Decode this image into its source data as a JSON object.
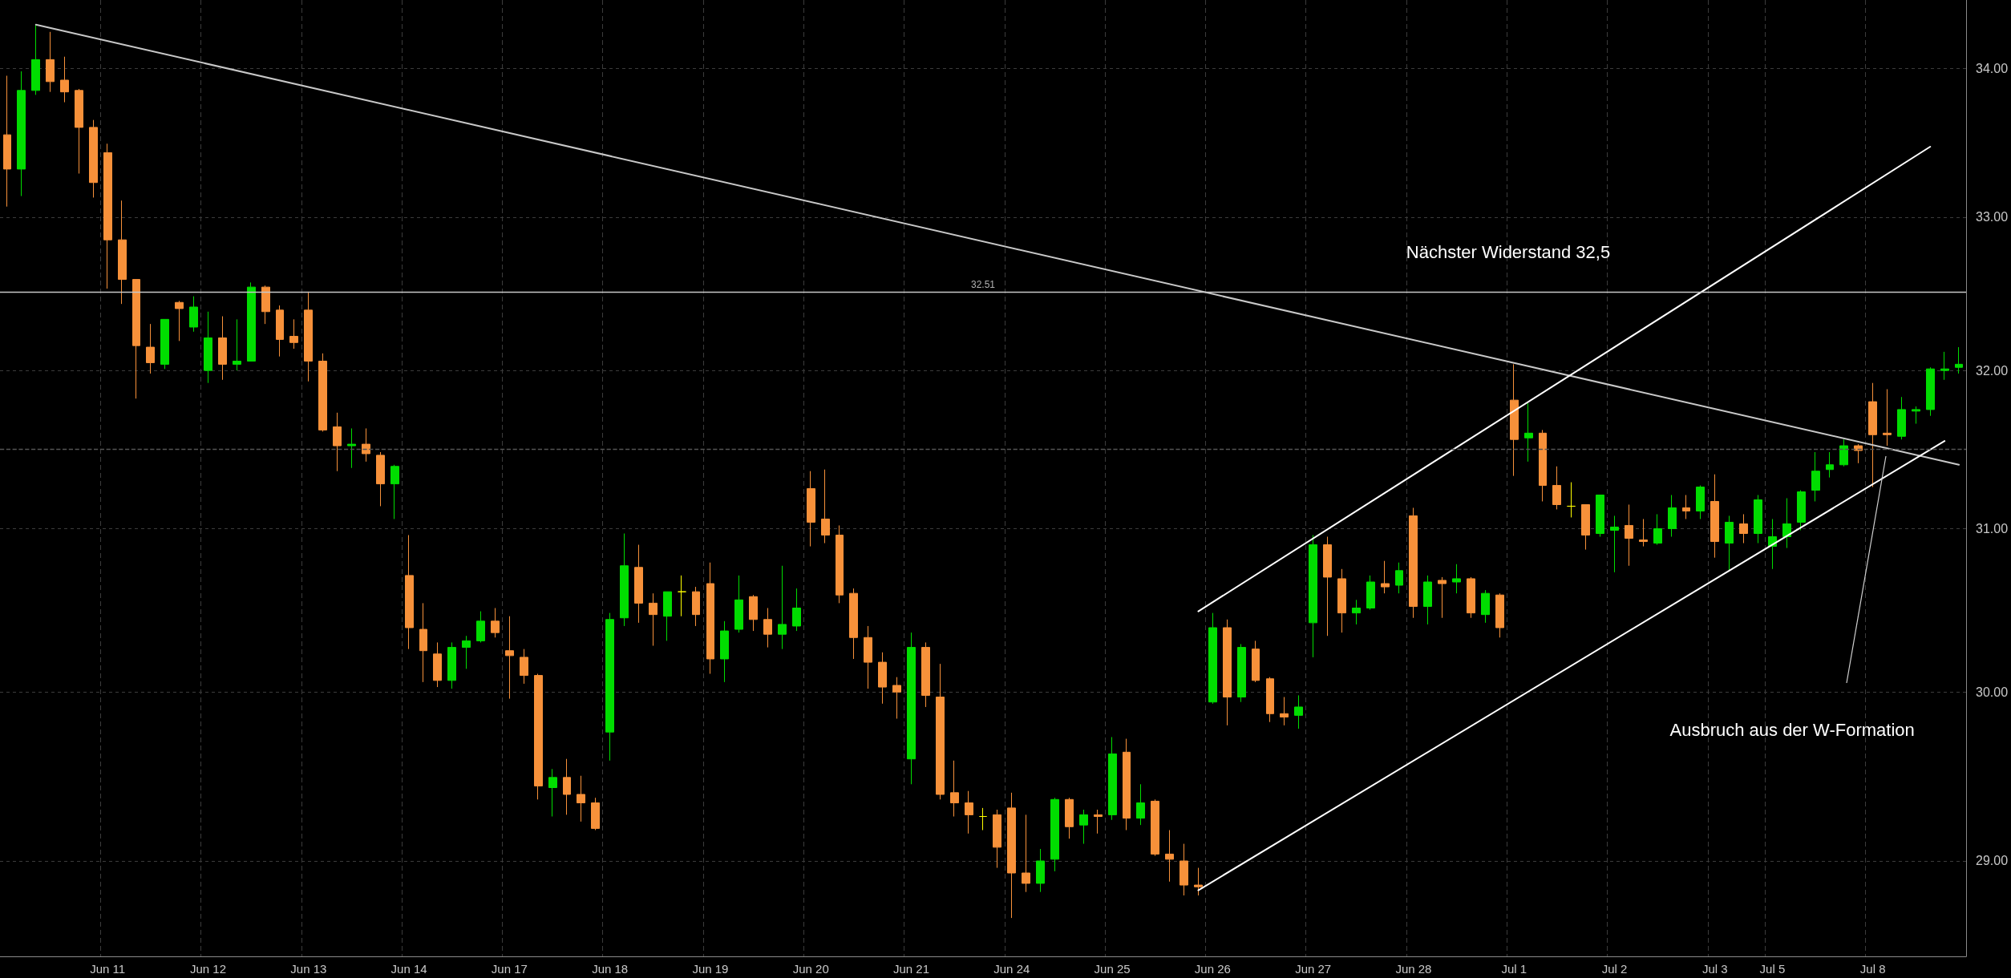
{
  "chart_data": {
    "type": "candlestick",
    "categories": [
      null,
      null,
      null,
      null,
      null,
      null,
      null,
      "Jun 11",
      null,
      null,
      null,
      null,
      null,
      null,
      "Jun 12",
      null,
      null,
      null,
      null,
      null,
      null,
      "Jun 13",
      null,
      null,
      null,
      null,
      null,
      null,
      "Jun 14",
      null,
      null,
      null,
      null,
      null,
      null,
      "Jun 17",
      null,
      null,
      null,
      null,
      null,
      null,
      "Jun 18",
      null,
      null,
      null,
      null,
      null,
      null,
      "Jun 19",
      null,
      null,
      null,
      null,
      null,
      null,
      "Jun 20",
      null,
      null,
      null,
      null,
      null,
      null,
      "Jun 21",
      null,
      null,
      null,
      null,
      null,
      null,
      "Jun 24",
      null,
      null,
      null,
      null,
      null,
      null,
      "Jun 25",
      null,
      null,
      null,
      null,
      null,
      null,
      "Jun 26",
      null,
      null,
      null,
      null,
      null,
      null,
      "Jun 27",
      null,
      null,
      null,
      null,
      null,
      null,
      "Jun 28",
      null,
      null,
      null,
      null,
      null,
      null,
      "Jul 1",
      null,
      null,
      null,
      null,
      null,
      null,
      "Jul 2",
      null,
      null,
      null,
      null,
      null,
      null,
      "Jul 3",
      null,
      null,
      null,
      "Jul 5",
      null,
      null,
      null,
      null,
      null,
      null,
      "Jul 8",
      null,
      null,
      null,
      null,
      null,
      null
    ],
    "series": [
      {
        "ohlc": [
          [
            33.55,
            33.95,
            33.07,
            33.32
          ],
          [
            33.32,
            33.98,
            33.14,
            33.85
          ],
          [
            33.85,
            34.3,
            33.82,
            34.06
          ],
          [
            34.06,
            34.25,
            33.84,
            33.91
          ],
          [
            33.92,
            34.08,
            33.77,
            33.84
          ],
          [
            33.85,
            33.86,
            33.29,
            33.6
          ],
          [
            33.6,
            33.65,
            33.13,
            33.23
          ],
          [
            33.43,
            33.49,
            32.53,
            32.85
          ],
          [
            32.85,
            33.11,
            32.43,
            32.59
          ],
          [
            32.59,
            32.59,
            31.82,
            32.16
          ],
          [
            32.15,
            32.3,
            31.98,
            32.05
          ],
          [
            32.04,
            32.33,
            32.01,
            32.33
          ],
          [
            32.44,
            32.45,
            32.19,
            32.4
          ],
          [
            32.28,
            32.48,
            32.25,
            32.41
          ],
          [
            32.0,
            32.38,
            31.92,
            32.21
          ],
          [
            32.21,
            32.35,
            31.94,
            32.04
          ],
          [
            32.04,
            32.33,
            32.0,
            32.06
          ],
          [
            32.06,
            32.57,
            32.06,
            32.54
          ],
          [
            32.54,
            32.55,
            32.3,
            32.38
          ],
          [
            32.39,
            32.42,
            32.09,
            32.2
          ],
          [
            32.22,
            32.33,
            32.14,
            32.18
          ],
          [
            32.39,
            32.51,
            31.93,
            32.06
          ],
          [
            32.06,
            32.11,
            31.61,
            31.62
          ],
          [
            31.64,
            31.73,
            31.36,
            31.52
          ],
          [
            31.52,
            31.63,
            31.38,
            31.53
          ],
          [
            31.53,
            31.63,
            31.42,
            31.47
          ],
          [
            31.46,
            31.48,
            31.14,
            31.28
          ],
          [
            31.28,
            31.4,
            31.06,
            31.39
          ],
          [
            30.71,
            30.96,
            30.26,
            30.39
          ],
          [
            30.38,
            30.54,
            30.06,
            30.25
          ],
          [
            30.23,
            30.3,
            30.03,
            30.07
          ],
          [
            30.07,
            30.3,
            30.02,
            30.27
          ],
          [
            30.27,
            30.34,
            30.14,
            30.31
          ],
          [
            30.31,
            30.49,
            30.3,
            30.43
          ],
          [
            30.43,
            30.51,
            30.33,
            30.36
          ],
          [
            30.25,
            30.46,
            29.96,
            30.22
          ],
          [
            30.21,
            30.26,
            30.05,
            30.1
          ],
          [
            30.1,
            30.11,
            29.36,
            29.44
          ],
          [
            29.43,
            29.54,
            29.26,
            29.49
          ],
          [
            29.49,
            29.6,
            29.27,
            29.39
          ],
          [
            29.39,
            29.5,
            29.23,
            29.34
          ],
          [
            29.34,
            29.37,
            29.18,
            29.19
          ],
          [
            29.76,
            30.48,
            29.59,
            30.44
          ],
          [
            30.45,
            30.97,
            30.4,
            30.77
          ],
          [
            30.76,
            30.9,
            30.42,
            30.54
          ],
          [
            30.54,
            30.6,
            30.28,
            30.47
          ],
          [
            30.46,
            30.61,
            30.31,
            30.61
          ],
          [
            30.61,
            30.71,
            30.46,
            30.61
          ],
          [
            30.61,
            30.64,
            30.4,
            30.47
          ],
          [
            30.66,
            30.79,
            30.11,
            30.2
          ],
          [
            30.2,
            30.43,
            30.06,
            30.37
          ],
          [
            30.38,
            30.71,
            30.36,
            30.56
          ],
          [
            30.58,
            30.59,
            30.37,
            30.44
          ],
          [
            30.44,
            30.51,
            30.27,
            30.35
          ],
          [
            30.35,
            30.77,
            30.26,
            30.41
          ],
          [
            30.4,
            30.63,
            30.37,
            30.51
          ],
          [
            31.25,
            31.36,
            30.89,
            31.04
          ],
          [
            31.06,
            31.37,
            30.91,
            30.96
          ],
          [
            30.96,
            31.02,
            30.54,
            30.59
          ],
          [
            30.6,
            30.63,
            30.2,
            30.33
          ],
          [
            30.33,
            30.4,
            30.02,
            30.18
          ],
          [
            30.18,
            30.24,
            29.93,
            30.03
          ],
          [
            30.04,
            30.09,
            29.84,
            30.0
          ],
          [
            29.6,
            30.36,
            29.45,
            30.27
          ],
          [
            30.27,
            30.3,
            29.91,
            29.98
          ],
          [
            29.97,
            30.17,
            29.36,
            29.39
          ],
          [
            29.4,
            29.59,
            29.26,
            29.34
          ],
          [
            29.34,
            29.41,
            29.16,
            29.27
          ],
          [
            29.26,
            29.31,
            29.18,
            29.26
          ],
          [
            29.27,
            29.3,
            28.96,
            29.08
          ],
          [
            29.31,
            29.4,
            28.67,
            28.93
          ],
          [
            28.93,
            29.27,
            28.82,
            28.87
          ],
          [
            28.87,
            29.07,
            28.82,
            29.0
          ],
          [
            29.01,
            29.37,
            28.94,
            29.36
          ],
          [
            29.36,
            29.37,
            29.13,
            29.2
          ],
          [
            29.21,
            29.3,
            29.1,
            29.27
          ],
          [
            29.27,
            29.3,
            29.16,
            29.26
          ],
          [
            29.27,
            29.73,
            29.24,
            29.63
          ],
          [
            29.64,
            29.72,
            29.18,
            29.25
          ],
          [
            29.25,
            29.45,
            29.21,
            29.34
          ],
          [
            29.35,
            29.36,
            29.03,
            29.04
          ],
          [
            29.04,
            29.18,
            28.88,
            29.01
          ],
          [
            29.0,
            29.1,
            28.8,
            28.86
          ],
          [
            28.86,
            28.96,
            28.8,
            28.85
          ],
          [
            29.94,
            30.48,
            29.93,
            30.39
          ],
          [
            30.39,
            30.44,
            29.8,
            29.97
          ],
          [
            29.97,
            30.29,
            29.94,
            30.27
          ],
          [
            30.26,
            30.31,
            30.06,
            30.07
          ],
          [
            30.08,
            30.09,
            29.82,
            29.87
          ],
          [
            29.87,
            29.97,
            29.8,
            29.85
          ],
          [
            29.86,
            29.98,
            29.78,
            29.91
          ],
          [
            30.42,
            30.96,
            30.21,
            30.9
          ],
          [
            30.9,
            30.95,
            30.34,
            30.7
          ],
          [
            30.69,
            30.75,
            30.36,
            30.48
          ],
          [
            30.48,
            30.56,
            30.41,
            30.51
          ],
          [
            30.51,
            30.71,
            30.5,
            30.67
          ],
          [
            30.66,
            30.8,
            30.6,
            30.64
          ],
          [
            30.65,
            30.79,
            30.6,
            30.74
          ],
          [
            31.08,
            31.13,
            30.45,
            30.52
          ],
          [
            30.52,
            30.71,
            30.41,
            30.67
          ],
          [
            30.68,
            30.7,
            30.45,
            30.66
          ],
          [
            30.67,
            30.78,
            30.6,
            30.69
          ],
          [
            30.69,
            30.7,
            30.45,
            30.48
          ],
          [
            30.47,
            30.62,
            30.42,
            30.6
          ],
          [
            30.59,
            30.6,
            30.33,
            30.39
          ],
          [
            31.81,
            32.04,
            31.33,
            31.56
          ],
          [
            31.57,
            31.79,
            31.42,
            31.6
          ],
          [
            31.6,
            31.62,
            31.17,
            31.27
          ],
          [
            31.27,
            31.39,
            31.12,
            31.15
          ],
          [
            31.14,
            31.29,
            31.07,
            31.14
          ],
          [
            31.15,
            31.15,
            30.87,
            30.96
          ],
          [
            30.97,
            31.21,
            30.95,
            31.21
          ],
          [
            30.99,
            31.08,
            30.73,
            31.01
          ],
          [
            31.02,
            31.15,
            30.77,
            30.94
          ],
          [
            30.93,
            31.06,
            30.89,
            30.92
          ],
          [
            30.91,
            31.09,
            30.9,
            31.0
          ],
          [
            31.0,
            31.21,
            30.95,
            31.13
          ],
          [
            31.13,
            31.21,
            31.06,
            31.11
          ],
          [
            31.11,
            31.27,
            31.06,
            31.26
          ],
          [
            31.17,
            31.34,
            30.82,
            30.92
          ],
          [
            30.91,
            31.08,
            30.74,
            31.04
          ],
          [
            31.03,
            31.09,
            30.91,
            30.97
          ],
          [
            30.97,
            31.21,
            30.91,
            31.18
          ],
          [
            30.89,
            31.06,
            30.75,
            30.95
          ],
          [
            30.95,
            31.19,
            30.88,
            31.03
          ],
          [
            31.04,
            31.24,
            30.99,
            31.23
          ],
          [
            31.24,
            31.48,
            31.17,
            31.36
          ],
          [
            31.37,
            31.48,
            31.32,
            31.4
          ],
          [
            31.4,
            31.56,
            31.39,
            31.52
          ],
          [
            31.52,
            31.53,
            31.41,
            31.49
          ],
          [
            31.8,
            31.92,
            31.26,
            31.59
          ],
          [
            31.6,
            31.88,
            31.52,
            31.59
          ],
          [
            31.58,
            31.83,
            31.56,
            31.75
          ],
          [
            31.74,
            31.77,
            31.66,
            31.75
          ],
          [
            31.75,
            32.02,
            31.71,
            32.01
          ],
          [
            32.0,
            32.12,
            31.94,
            32.01
          ],
          [
            32.02,
            32.15,
            31.98,
            32.04
          ]
        ],
        "colors": [
          "#f7913a",
          "#00dd00",
          "#00dd00",
          "#f7913a",
          "#f7913a",
          "#f7913a",
          "#f7913a",
          "#f7913a",
          "#f7913a",
          "#f7913a",
          "#f7913a",
          "#00dd00",
          "#f7913a",
          "#00dd00",
          "#00dd00",
          "#f7913a",
          "#00dd00",
          "#00dd00",
          "#f7913a",
          "#f7913a",
          "#f7913a",
          "#f7913a",
          "#f7913a",
          "#f7913a",
          "#00dd00",
          "#f7913a",
          "#f7913a",
          "#00dd00",
          "#f7913a",
          "#f7913a",
          "#f7913a",
          "#00dd00",
          "#00dd00",
          "#00dd00",
          "#f7913a",
          "#f7913a",
          "#f7913a",
          "#f7913a",
          "#00dd00",
          "#f7913a",
          "#f7913a",
          "#f7913a",
          "#00dd00",
          "#00dd00",
          "#f7913a",
          "#f7913a",
          "#00dd00",
          "#ffff00",
          "#f7913a",
          "#f7913a",
          "#00dd00",
          "#00dd00",
          "#f7913a",
          "#f7913a",
          "#00dd00",
          "#00dd00",
          "#f7913a",
          "#f7913a",
          "#f7913a",
          "#f7913a",
          "#f7913a",
          "#f7913a",
          "#f7913a",
          "#00dd00",
          "#f7913a",
          "#f7913a",
          "#f7913a",
          "#f7913a",
          "#ffff00",
          "#f7913a",
          "#f7913a",
          "#f7913a",
          "#00dd00",
          "#00dd00",
          "#f7913a",
          "#00dd00",
          "#f7913a",
          "#00dd00",
          "#f7913a",
          "#00dd00",
          "#f7913a",
          "#f7913a",
          "#f7913a",
          "#f7913a",
          "#00dd00",
          "#f7913a",
          "#00dd00",
          "#f7913a",
          "#f7913a",
          "#f7913a",
          "#00dd00",
          "#00dd00",
          "#f7913a",
          "#f7913a",
          "#00dd00",
          "#00dd00",
          "#f7913a",
          "#00dd00",
          "#f7913a",
          "#00dd00",
          "#f7913a",
          "#00dd00",
          "#f7913a",
          "#00dd00",
          "#f7913a",
          "#f7913a",
          "#00dd00",
          "#f7913a",
          "#f7913a",
          "#ffff00",
          "#f7913a",
          "#00dd00",
          "#00dd00",
          "#f7913a",
          "#f7913a",
          "#00dd00",
          "#00dd00",
          "#f7913a",
          "#00dd00",
          "#f7913a",
          "#00dd00",
          "#f7913a",
          "#00dd00",
          "#00dd00",
          "#00dd00",
          "#00dd00",
          "#00dd00",
          "#00dd00",
          "#00dd00",
          "#f7913a",
          "#f7913a",
          "#f7913a",
          "#00dd00",
          "#00dd00",
          "#00dd00",
          "#00dd00",
          "#00dd00"
        ]
      },
      {
        "type": "line",
        "color": "#c8c8c8",
        "values": [
          null,
          null,
          34.3,
          null,
          null,
          null,
          null,
          null,
          null,
          null,
          null,
          null,
          null,
          null,
          null,
          null,
          null,
          null,
          null,
          null,
          null,
          null,
          null,
          null,
          null,
          null,
          null,
          null,
          null,
          null,
          null,
          null,
          null,
          null,
          null,
          null,
          null,
          null,
          null,
          null,
          null,
          null,
          null,
          null,
          null,
          null,
          null,
          null,
          null,
          null,
          null,
          null,
          null,
          null,
          null,
          null,
          null,
          null,
          null,
          null,
          null,
          null,
          null,
          null,
          null,
          null,
          null,
          null,
          null,
          null,
          null,
          null,
          null,
          null,
          null,
          null,
          null,
          null,
          null,
          null,
          null,
          null,
          null,
          null,
          null,
          null,
          null,
          null,
          null,
          null,
          null,
          null,
          null,
          null,
          null,
          null,
          null,
          null,
          null,
          null,
          null,
          null,
          null,
          null,
          null,
          null,
          null,
          null,
          null,
          null,
          null,
          null,
          null,
          null,
          null,
          null,
          null,
          null,
          null,
          null,
          null,
          null,
          null,
          null,
          null,
          null,
          null,
          null,
          null,
          null,
          null,
          null,
          null,
          null,
          null,
          null,
          31.4
        ]
      },
      {
        "type": "line",
        "color": "#ffffff",
        "values": [
          null,
          null,
          null,
          null,
          null,
          null,
          null,
          null,
          null,
          null,
          null,
          null,
          null,
          null,
          null,
          null,
          null,
          null,
          null,
          null,
          null,
          null,
          null,
          null,
          null,
          null,
          null,
          null,
          null,
          null,
          null,
          null,
          null,
          null,
          null,
          null,
          null,
          null,
          null,
          null,
          null,
          null,
          null,
          null,
          null,
          null,
          null,
          null,
          null,
          null,
          null,
          null,
          null,
          null,
          null,
          null,
          null,
          null,
          null,
          null,
          null,
          null,
          null,
          null,
          null,
          null,
          null,
          null,
          null,
          null,
          null,
          null,
          null,
          null,
          null,
          null,
          null,
          null,
          null,
          null,
          null,
          null,
          null,
          30.49,
          null,
          null,
          null,
          null,
          null,
          null,
          null,
          null,
          null,
          null,
          null,
          null,
          null,
          null,
          null,
          null,
          null,
          null,
          null,
          null,
          null,
          null,
          null,
          null,
          null,
          null,
          null,
          null,
          null,
          null,
          null,
          null,
          null,
          null,
          null,
          null,
          null,
          null,
          null,
          null,
          null,
          null,
          null,
          null,
          null,
          null,
          null,
          null,
          null,
          null,
          33.47,
          null,
          null
        ]
      },
      {
        "type": "line",
        "color": "#ffffff",
        "values": [
          null,
          null,
          null,
          null,
          null,
          null,
          null,
          null,
          null,
          null,
          null,
          null,
          null,
          null,
          null,
          null,
          null,
          null,
          null,
          null,
          null,
          null,
          null,
          null,
          null,
          null,
          null,
          null,
          null,
          null,
          null,
          null,
          null,
          null,
          null,
          null,
          null,
          null,
          null,
          null,
          null,
          null,
          null,
          null,
          null,
          null,
          null,
          null,
          null,
          null,
          null,
          null,
          null,
          null,
          null,
          null,
          null,
          null,
          null,
          null,
          null,
          null,
          null,
          null,
          null,
          null,
          null,
          null,
          null,
          null,
          null,
          null,
          null,
          null,
          null,
          null,
          null,
          null,
          null,
          null,
          null,
          null,
          null,
          28.83,
          null,
          null,
          null,
          null,
          null,
          null,
          null,
          null,
          null,
          null,
          null,
          null,
          null,
          null,
          null,
          null,
          null,
          null,
          null,
          null,
          null,
          null,
          null,
          null,
          null,
          null,
          null,
          null,
          null,
          null,
          null,
          null,
          null,
          null,
          null,
          null,
          null,
          null,
          null,
          null,
          null,
          null,
          null,
          null,
          null,
          null,
          null,
          null,
          null,
          null,
          null,
          31.55,
          null
        ]
      }
    ],
    "ylim": [
      28.45,
      34.47
    ],
    "yticks": [
      {
        "value": 29,
        "label": "29.00"
      },
      {
        "value": 30,
        "label": "30.00"
      },
      {
        "value": 31,
        "label": "31.00"
      },
      {
        "value": 32,
        "label": "32.00"
      },
      {
        "value": 33,
        "label": "33.00"
      },
      {
        "value": 34,
        "label": "34.00"
      }
    ],
    "log": true,
    "grid": true,
    "marker": "none",
    "line_style": "solid",
    "ref_lines": [
      {
        "axis": "y",
        "value": 32.51,
        "label": "32.51",
        "color": "#c8c8c8"
      },
      {
        "axis": "y",
        "value": 31.5,
        "color": "#555555",
        "line_style": "dashed"
      }
    ],
    "annotations": [
      "Nächster Widerstand 32,5",
      "Ausbruch aus der W-Formation"
    ]
  }
}
